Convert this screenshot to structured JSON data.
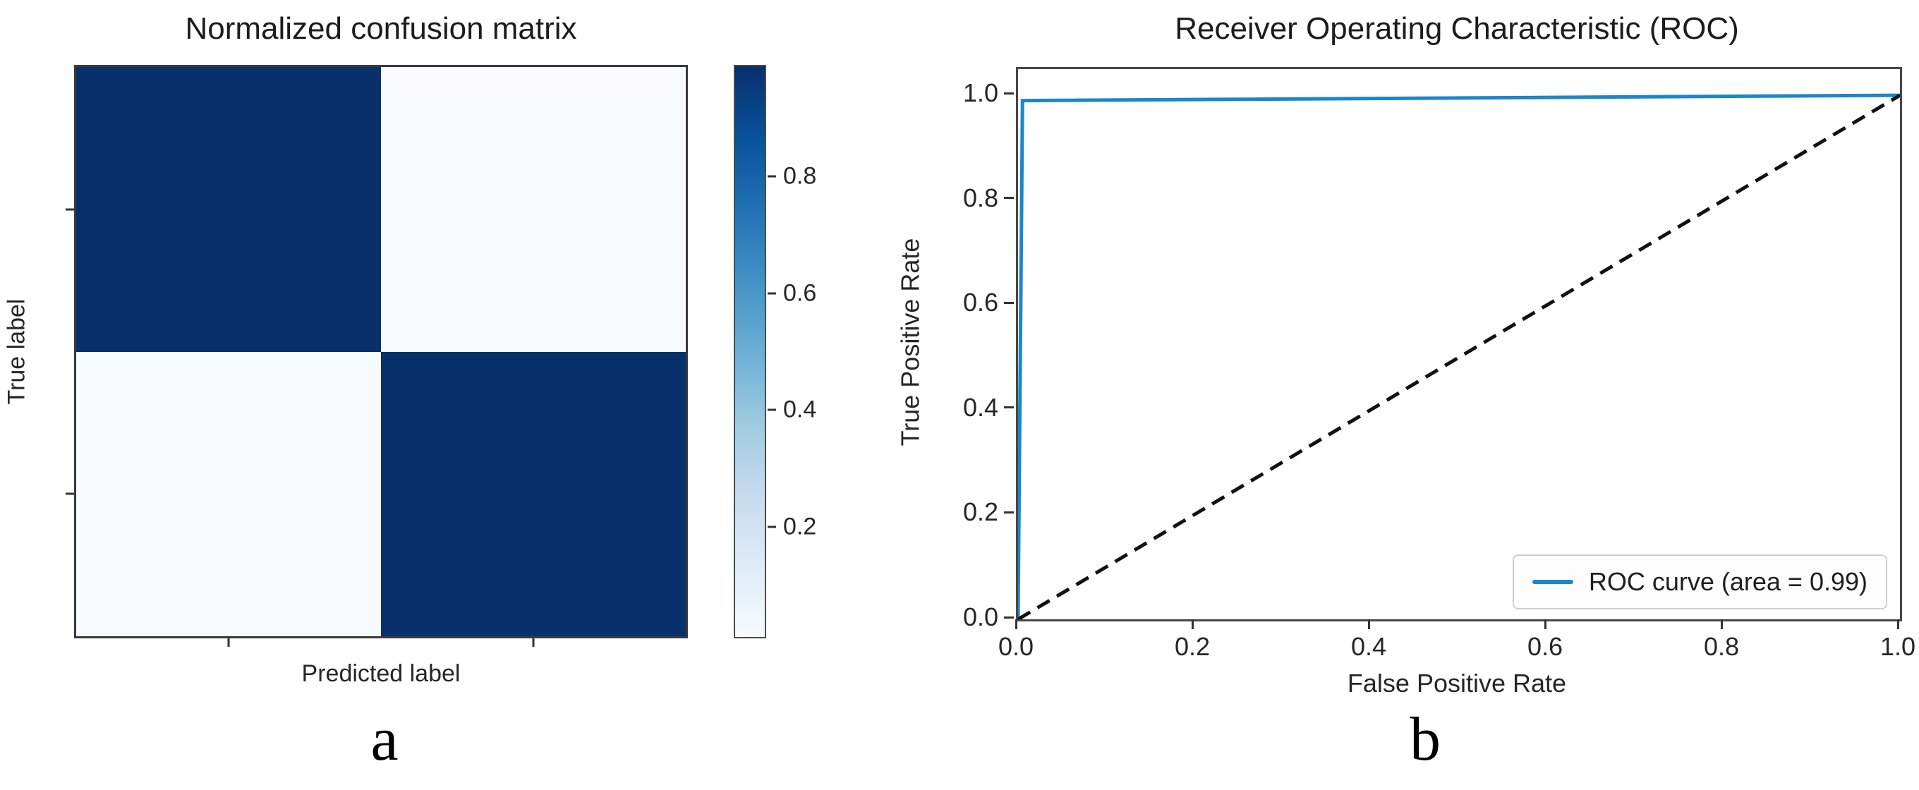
{
  "panel_a": {
    "title": "Normalized confusion matrix",
    "xlabel": "Predicted label",
    "ylabel": "True label",
    "caption": "a"
  },
  "panel_b": {
    "title": "Receiver Operating Characteristic (ROC)",
    "xlabel": "False Positive Rate",
    "ylabel": "True Positive Rate",
    "caption": "b",
    "legend_label": "ROC curve (area = 0.99)"
  },
  "colors": {
    "heatmap_dark": "#08306b",
    "heatmap_light": "#f7fbff",
    "roc_blue": "#1a87c9",
    "chance_line": "#111111",
    "spine": "#474747"
  },
  "chart_data": [
    {
      "type": "heatmap",
      "title": "Normalized confusion matrix",
      "xlabel": "Predicted label",
      "ylabel": "True label",
      "matrix": [
        [
          0.99,
          0.01
        ],
        [
          0.01,
          0.99
        ]
      ],
      "x_tick_labels": [
        "",
        ""
      ],
      "y_tick_labels": [
        "",
        ""
      ],
      "colormap": "Blues",
      "colorbar_ticks": [
        0.8,
        0.6,
        0.4,
        0.2
      ],
      "colorbar_range": [
        0.01,
        0.99
      ],
      "grid": false
    },
    {
      "type": "line",
      "title": "Receiver Operating Characteristic (ROC)",
      "xlabel": "False Positive Rate",
      "ylabel": "True Positive Rate",
      "xlim": [
        0.0,
        1.0
      ],
      "ylim": [
        0.0,
        1.05
      ],
      "x_ticks": [
        0.0,
        0.2,
        0.4,
        0.6,
        0.8,
        1.0
      ],
      "y_ticks": [
        0.0,
        0.2,
        0.4,
        0.6,
        0.8,
        1.0
      ],
      "grid": false,
      "legend_position": "lower right",
      "series": [
        {
          "name": "ROC curve (area = 0.99)",
          "style": "solid",
          "color": "#1a87c9",
          "x": [
            0.0,
            0.005,
            1.0
          ],
          "y": [
            0.0,
            0.99,
            1.0
          ]
        },
        {
          "name": "chance diagonal",
          "style": "dashed",
          "color": "#111111",
          "x": [
            0.0,
            1.0
          ],
          "y": [
            0.0,
            1.0
          ]
        }
      ]
    }
  ]
}
